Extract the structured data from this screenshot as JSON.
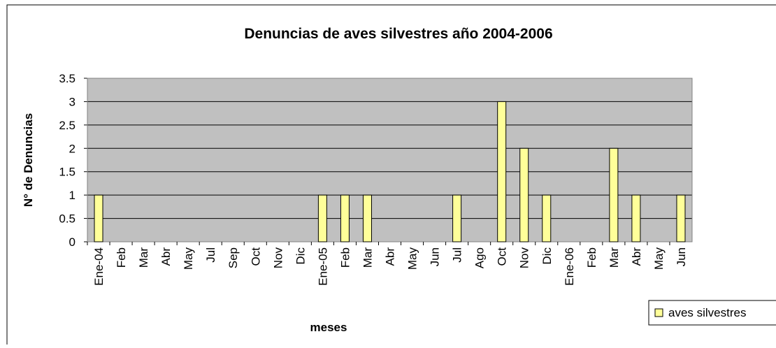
{
  "chart_data": {
    "type": "bar",
    "title": "Denuncias de aves silvestres año 2004-2006",
    "x_label": "meses",
    "y_label": "N° de Denuncias",
    "categories": [
      "Ene-04",
      "Feb",
      "Mar",
      "Abr",
      "May",
      "Jul",
      "Sep",
      "Oct",
      "Nov",
      "Dic",
      "Ene-05",
      "Feb",
      "Mar",
      "Abr",
      "May",
      "Jun",
      "Jul",
      "Ago",
      "Oct",
      "Nov",
      "Dic",
      "Ene-06",
      "Feb",
      "Mar",
      "Abr",
      "May",
      "Jun"
    ],
    "series": [
      {
        "name": "aves silvestres",
        "color": "#ffff99",
        "values": [
          1,
          0,
          0,
          0,
          0,
          0,
          0,
          0,
          0,
          0,
          1,
          1,
          1,
          0,
          0,
          0,
          1,
          0,
          3,
          2,
          1,
          0,
          0,
          2,
          1,
          0,
          1
        ]
      }
    ],
    "ylim": [
      0,
      3.5
    ],
    "yticks": [
      0,
      0.5,
      1,
      1.5,
      2,
      2.5,
      3,
      3.5
    ],
    "grid": true,
    "legend": "bottom-right"
  }
}
